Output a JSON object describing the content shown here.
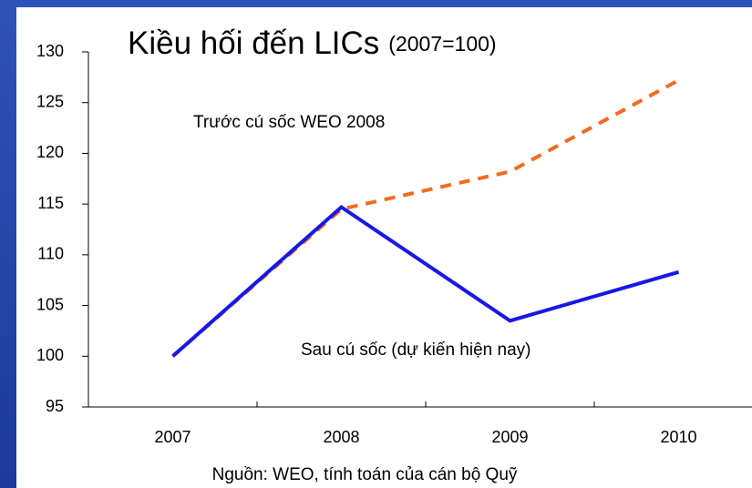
{
  "chart_data": {
    "type": "line",
    "title": "Kiều hối đến LICs",
    "subtitle": "(2007=100)",
    "categories": [
      "2007",
      "2008",
      "2009",
      "2010"
    ],
    "series": [
      {
        "name": "Trước cú sốc WEO 2008",
        "color": "#f36b21",
        "dashed": true,
        "values": [
          100,
          114.5,
          118.2,
          127.2
        ]
      },
      {
        "name": "Sau cú sốc (dự kiến hiện nay)",
        "color": "#1717e6",
        "dashed": false,
        "values": [
          100,
          114.7,
          103.5,
          108.3
        ]
      }
    ],
    "ylim": [
      95,
      130
    ],
    "yticks": [
      95,
      100,
      105,
      110,
      115,
      120,
      125,
      130
    ],
    "grid": false,
    "source": "Nguồn: WEO, tính toán của cán bộ Quỹ"
  }
}
